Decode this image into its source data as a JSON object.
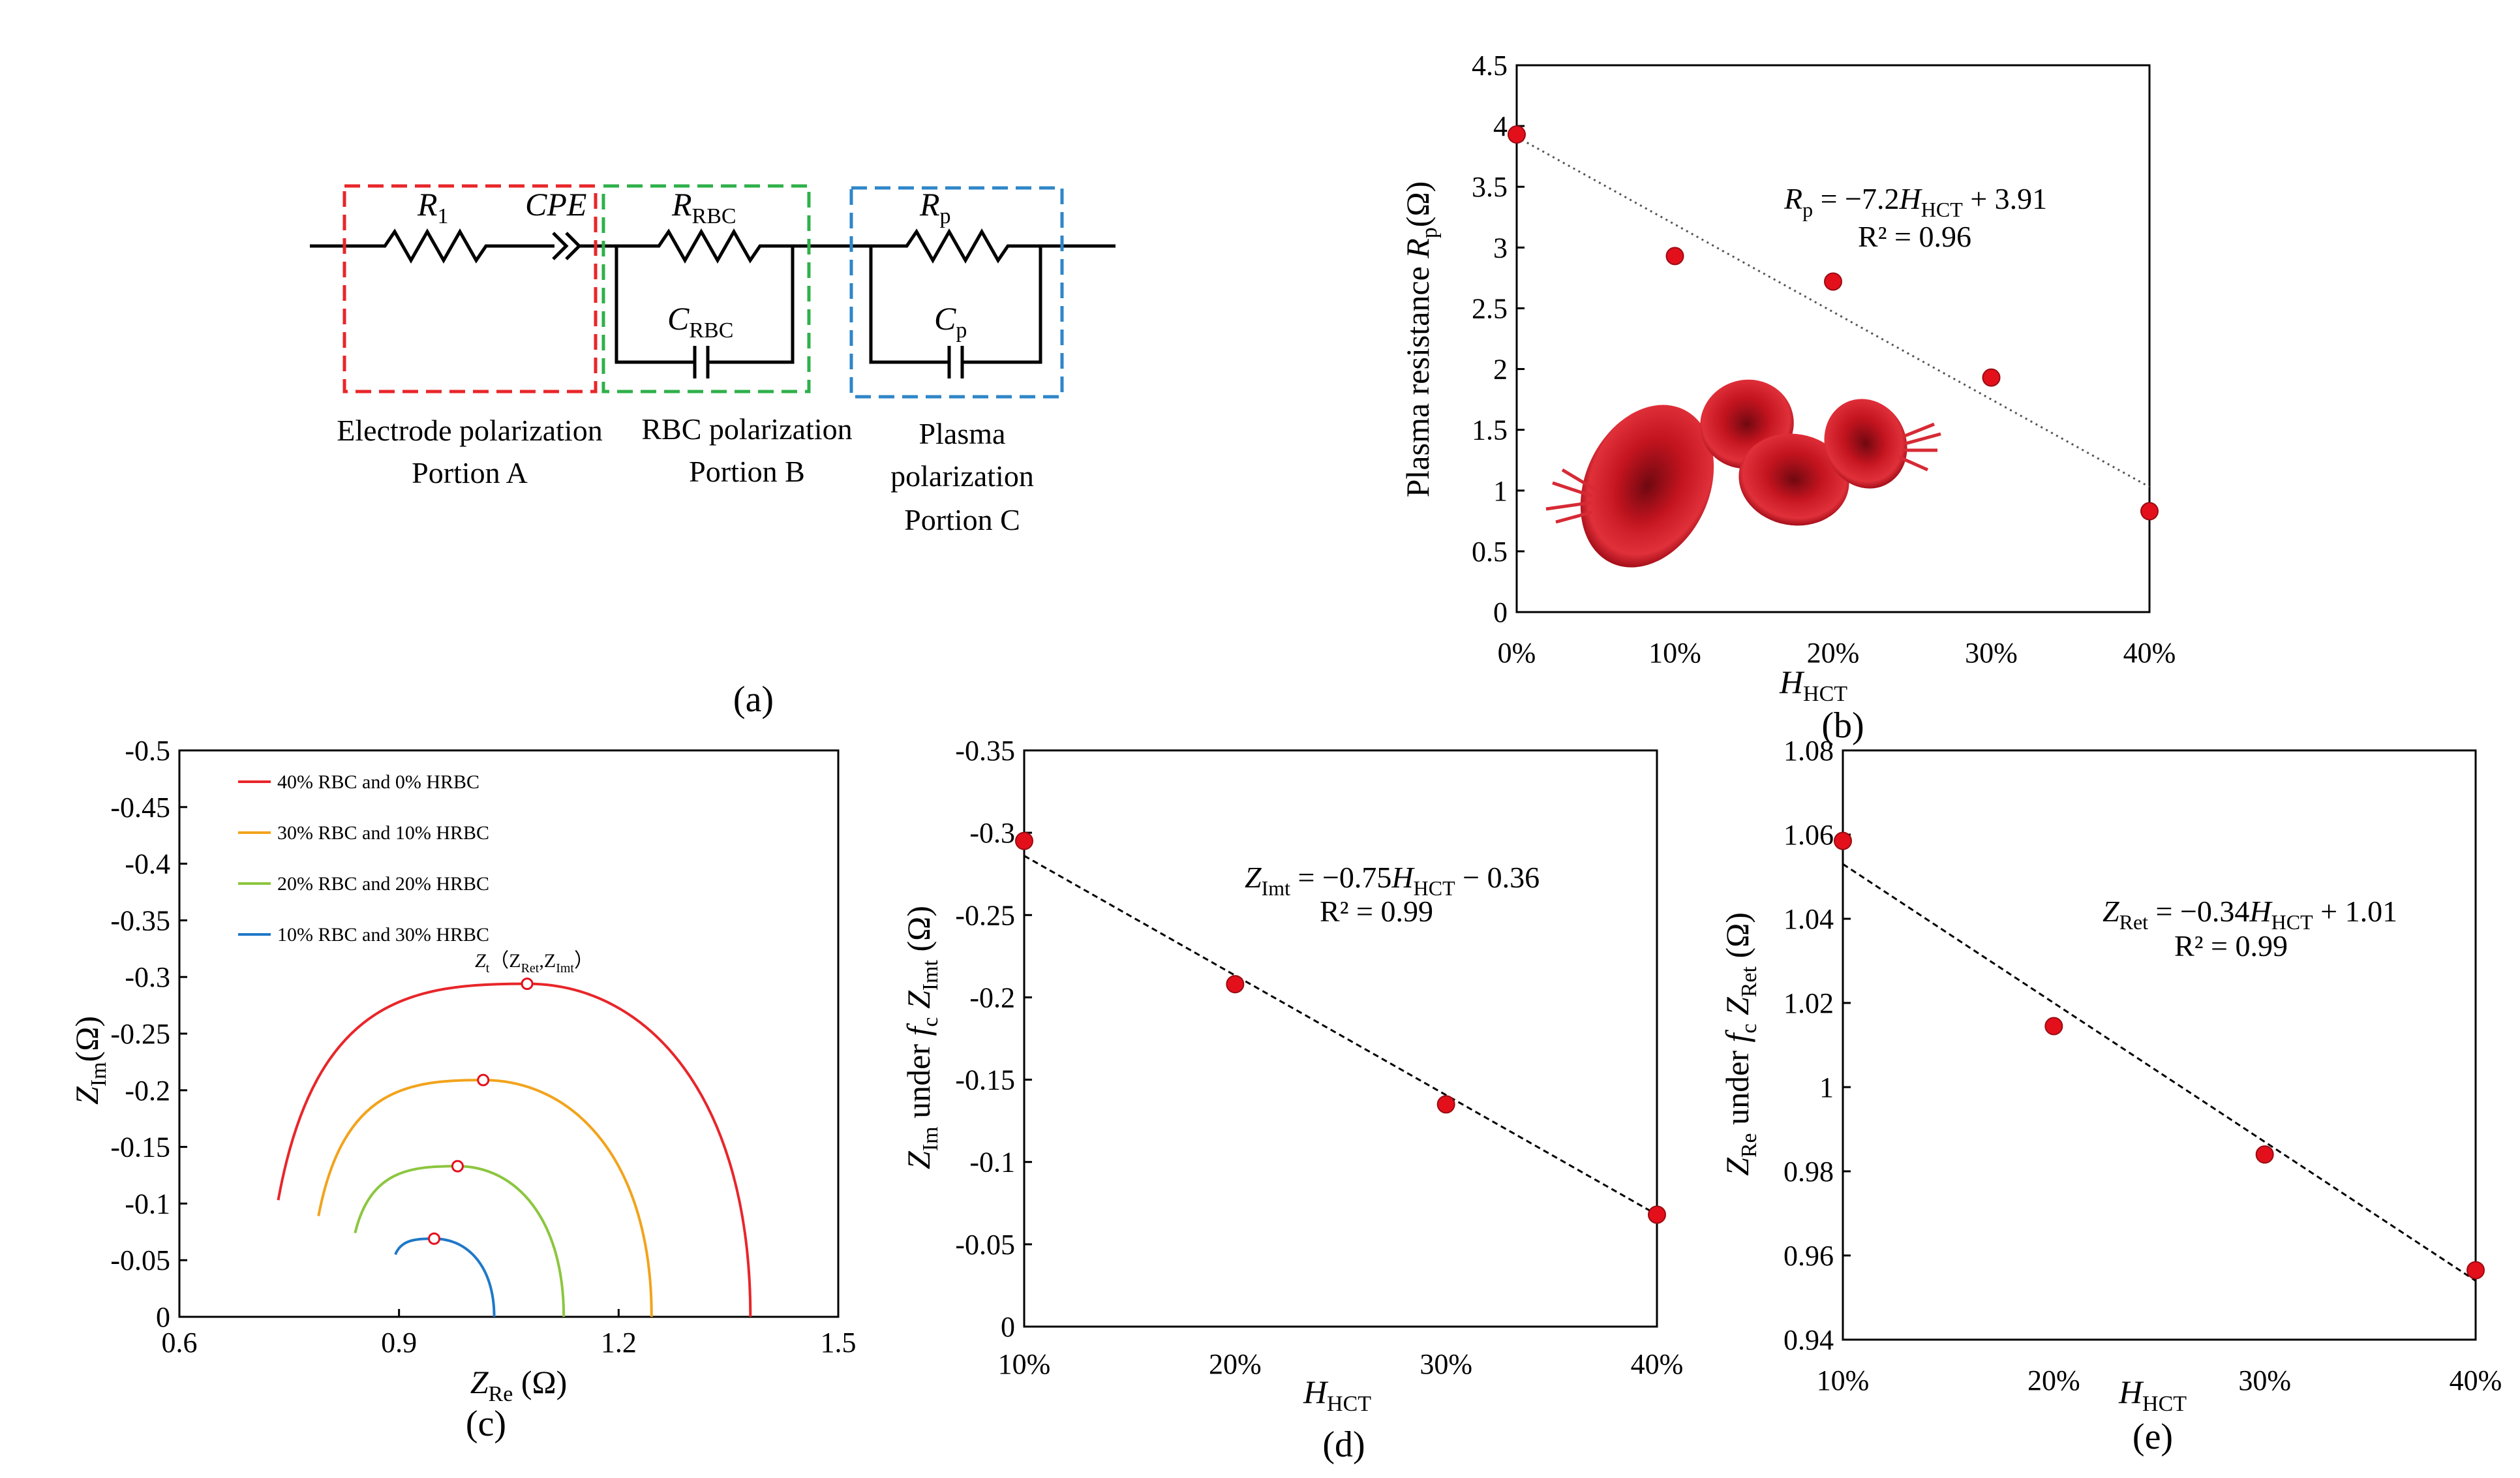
{
  "circuit": {
    "label": "(a)",
    "components": {
      "r1": "R",
      "r1_sub": "1",
      "cpe": "CPE",
      "rrbc": "R",
      "rrbc_sub": "RBC",
      "crbc": "C",
      "crbc_sub": "RBC",
      "rp": "R",
      "rp_sub": "p",
      "cp": "C",
      "cp_sub": "p"
    },
    "portion_a": [
      "Electrode polarization",
      "Portion A"
    ],
    "portion_b": [
      "RBC polarization",
      "Portion B"
    ],
    "portion_c": [
      "Plasma",
      "polarization",
      "Portion C"
    ],
    "colors": {
      "a": "#e8262a",
      "b": "#2fb04a",
      "c": "#2f86c8"
    }
  },
  "chart_data": [
    {
      "id": "b",
      "type": "scatter",
      "panel_label": "(b)",
      "x": [
        "0%",
        "10%",
        "20%",
        "30%",
        "40%"
      ],
      "y": [
        3.93,
        2.93,
        2.72,
        1.93,
        0.83
      ],
      "ylim": [
        0,
        4.5
      ],
      "yticks": [
        "0",
        "0.5",
        "1",
        "1.5",
        "2",
        "2.5",
        "3",
        "3.5",
        "4",
        "4.5"
      ],
      "xlabel": {
        "main": "H",
        "sub": "HCT"
      },
      "ylabel": {
        "pre": "Plasma resistance ",
        "main": "R",
        "sub": "p",
        "post": "(Ω)"
      },
      "equation": {
        "lhs": "R",
        "lhs_sub": "p",
        "rhs": " = −7.2",
        "var": "H",
        "var_sub": "HCT",
        "tail": " + 3.91",
        "r2": "R² = 0.96"
      },
      "trendline": [
        3.91,
        1.03
      ],
      "has_image": "red blood cells illustration"
    },
    {
      "id": "c",
      "type": "line",
      "panel_label": "(c)",
      "xlim": [
        0.6,
        1.5
      ],
      "ylim": [
        0,
        -0.5
      ],
      "xticks": [
        "0.6",
        "0.9",
        "1.2",
        "1.5"
      ],
      "yticks": [
        "0",
        "-0.05",
        "-0.1",
        "-0.15",
        "-0.2",
        "-0.25",
        "-0.3",
        "-0.35",
        "-0.4",
        "-0.45",
        "-0.5"
      ],
      "xlabel": {
        "main": "Z",
        "sub": "Re",
        "post": " (Ω)"
      },
      "ylabel": {
        "main": "Z",
        "sub": "Im",
        "post": "(Ω)"
      },
      "peak_label": {
        "main": "Z",
        "sub": "t",
        "paren": "（Z",
        "psub1": "Ret",
        "comma": ",Z",
        "psub2": "Imt",
        "close": "）"
      },
      "series": [
        {
          "name": "40% RBC and 0% HRBC",
          "color": "#e8262a",
          "start": [
            0.735,
            -0.103
          ],
          "peak": [
            1.075,
            -0.294
          ],
          "end": [
            1.38,
            0.0
          ]
        },
        {
          "name": "30% RBC and 10% HRBC",
          "color": "#f2a31c",
          "start": [
            0.79,
            -0.089
          ],
          "peak": [
            1.015,
            -0.209
          ],
          "end": [
            1.245,
            0.0
          ]
        },
        {
          "name": "20% RBC and 20% HRBC",
          "color": "#8cc63f",
          "start": [
            0.84,
            -0.074
          ],
          "peak": [
            0.98,
            -0.133
          ],
          "end": [
            1.125,
            0.0
          ]
        },
        {
          "name": "10% RBC and 30% HRBC",
          "color": "#1f78c8",
          "start": [
            0.895,
            -0.055
          ],
          "peak": [
            0.948,
            -0.069
          ],
          "end": [
            1.03,
            0.0
          ]
        }
      ]
    },
    {
      "id": "d",
      "type": "scatter",
      "panel_label": "(d)",
      "x": [
        "10%",
        "20%",
        "30%",
        "40%"
      ],
      "y": [
        -0.295,
        -0.208,
        -0.135,
        -0.068
      ],
      "ylim": [
        0,
        -0.35
      ],
      "yticks": [
        "0",
        "-0.05",
        "-0.1",
        "-0.15",
        "-0.2",
        "-0.25",
        "-0.3",
        "-0.35"
      ],
      "xlabel": {
        "main": "H",
        "sub": "HCT"
      },
      "ylabel": {
        "main": "Z",
        "sub": "Im",
        "mid": " under ",
        "f": "f",
        "fsub": "c",
        "main2": " Z",
        "sub2": "Imt",
        "post": " (Ω)"
      },
      "equation": {
        "lhs": "Z",
        "lhs_sub": "Imt",
        "rhs": " = −0.75",
        "var": "H",
        "var_sub": "HCT",
        "tail": " − 0.36",
        "r2": "R² = 0.99"
      },
      "trendline": [
        -0.286,
        -0.068
      ]
    },
    {
      "id": "e",
      "type": "scatter",
      "panel_label": "(e)",
      "x": [
        "10%",
        "20%",
        "30%",
        "40%"
      ],
      "y": [
        1.0585,
        1.0145,
        0.984,
        0.9565
      ],
      "ylim": [
        0.94,
        1.08
      ],
      "yticks": [
        "0.94",
        "0.96",
        "0.98",
        "1",
        "1.02",
        "1.04",
        "1.06",
        "1.08"
      ],
      "xlabel": {
        "main": "H",
        "sub": "HCT"
      },
      "ylabel": {
        "main": "Z",
        "sub": "Re",
        "mid": " under ",
        "f": "f",
        "fsub": "c",
        "main2": " Z",
        "sub2": "Ret",
        "post": " (Ω)"
      },
      "equation": {
        "lhs": "Z",
        "lhs_sub": "Ret",
        "rhs": " = −0.34",
        "var": "H",
        "var_sub": "HCT",
        "tail": " + 1.01",
        "r2": "R² = 0.99"
      },
      "trendline": [
        1.053,
        0.954
      ]
    }
  ]
}
